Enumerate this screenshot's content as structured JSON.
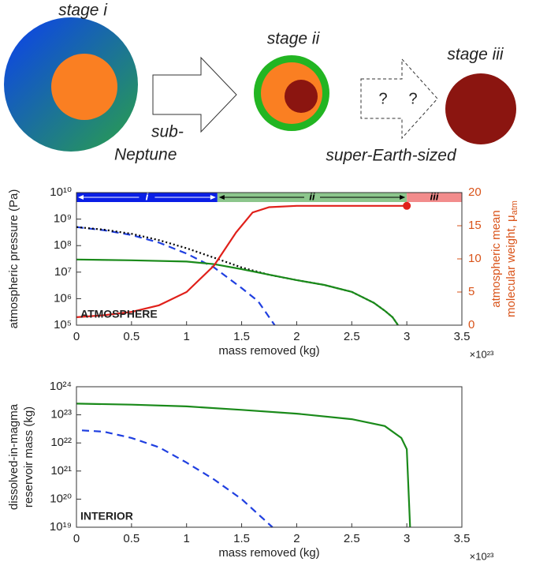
{
  "diagram": {
    "stage_1": "stage i",
    "stage_2": "stage ii",
    "stage_3": "stage iii",
    "caption_1": [
      "sub-",
      "Neptune"
    ],
    "caption_3": "super-Earth-sized",
    "question_marks": [
      "?",
      "?"
    ]
  },
  "chart_data": [
    {
      "type": "line",
      "xlabel": "mass removed (kg)",
      "ylabel": "atmospheric pressure (Pa)",
      "y2label": [
        "atmospheric mean",
        "molecular weight, μ"
      ],
      "y2label_sub": "atm",
      "x_multiplier": "×10²³",
      "annotation": "ATMOSPHERE",
      "log_y": true,
      "xlim": [
        0,
        3.5
      ],
      "xticks": [
        0,
        0.5,
        1,
        1.5,
        2,
        2.5,
        3,
        3.5
      ],
      "ylim": [
        100000,
        10000000000
      ],
      "yticks": [
        {
          "value": 100000,
          "label": "10⁵"
        },
        {
          "value": 1000000,
          "label": "10⁶"
        },
        {
          "value": 10000000,
          "label": "10⁷"
        },
        {
          "value": 100000000,
          "label": "10⁸"
        },
        {
          "value": 1000000000,
          "label": "10⁹"
        },
        {
          "value": 10000000000,
          "label": "10¹⁰"
        }
      ],
      "y2lim": [
        0,
        20
      ],
      "y2ticks": [
        0,
        5,
        10,
        15,
        20
      ],
      "y2color": "#d95319",
      "stages": [
        {
          "label": "i",
          "range": [
            0,
            1.28
          ],
          "color": "#0a1ee6"
        },
        {
          "label": "ii",
          "range": [
            1.28,
            3.0
          ],
          "color": "#8cc68c"
        },
        {
          "label": "iii",
          "range": [
            3.0,
            3.5
          ],
          "color": "#f28c8c"
        }
      ],
      "series": [
        {
          "color": "#1f3fe0",
          "dash": "dashed",
          "x": [
            0,
            0.25,
            0.5,
            0.75,
            1.0,
            1.25,
            1.5,
            1.65,
            1.8
          ],
          "values": [
            500000000,
            380000000,
            250000000,
            130000000,
            50000000,
            15000000,
            2500000,
            800000,
            100000
          ]
        },
        {
          "color": "#000000",
          "dash": "dotted",
          "x": [
            0,
            0.25,
            0.5,
            0.75,
            1.0,
            1.25,
            1.5,
            1.75,
            2.0,
            2.25,
            2.5,
            2.7,
            2.8,
            2.87,
            2.92
          ],
          "values": [
            500000000,
            400000000,
            280000000,
            160000000,
            80000000,
            35000000,
            15000000,
            8000000,
            5000000,
            3300000,
            1800000,
            700000,
            350000,
            200000,
            100000
          ]
        },
        {
          "color": "#1a8a1a",
          "dash": "solid",
          "x": [
            0,
            0.5,
            1.0,
            1.25,
            1.5,
            1.75,
            2.0,
            2.25,
            2.5,
            2.7,
            2.8,
            2.87,
            2.92
          ],
          "values": [
            30000000,
            28000000,
            25000000,
            20000000,
            13000000,
            8000000,
            5000000,
            3300000,
            1800000,
            700000,
            350000,
            200000,
            100000
          ]
        },
        {
          "color": "#e0201a",
          "dash": "solid",
          "axis": "y2",
          "end_marker": true,
          "x": [
            0,
            0.25,
            0.5,
            0.75,
            1.0,
            1.25,
            1.45,
            1.6,
            1.75,
            2.0,
            2.5,
            3.0
          ],
          "values": [
            1.2,
            1.5,
            2,
            3,
            5,
            9,
            14,
            17,
            17.8,
            18,
            18,
            18
          ]
        }
      ]
    },
    {
      "type": "line",
      "xlabel": "mass removed (kg)",
      "ylabel": [
        "dissolved-in-magma",
        "reservoir mass (kg)"
      ],
      "x_multiplier": "×10²³",
      "annotation": "INTERIOR",
      "log_y": true,
      "xlim": [
        0,
        3.5
      ],
      "xticks": [
        0,
        0.5,
        1,
        1.5,
        2,
        2.5,
        3,
        3.5
      ],
      "ylim": [
        1e+19,
        1e+24
      ],
      "yticks": [
        {
          "value": 1e+19,
          "label": "10¹⁹"
        },
        {
          "value": 1e+20,
          "label": "10²⁰"
        },
        {
          "value": 1e+21,
          "label": "10²¹"
        },
        {
          "value": 1e+22,
          "label": "10²²"
        },
        {
          "value": 1e+23,
          "label": "10²³"
        },
        {
          "value": 1e+24,
          "label": "10²⁴"
        }
      ],
      "series": [
        {
          "color": "#1a8a1a",
          "dash": "solid",
          "x": [
            0,
            0.5,
            1.0,
            1.5,
            2.0,
            2.5,
            2.8,
            2.95,
            3.0,
            3.03
          ],
          "values": [
            2.5e+23,
            2.3e+23,
            2e+23,
            1.5e+23,
            1.1e+23,
            7e+22,
            4e+22,
            1.5e+22,
            6e+21,
            1e+19
          ]
        },
        {
          "color": "#1f3fe0",
          "dash": "dashed",
          "x": [
            0.05,
            0.25,
            0.5,
            0.75,
            1.0,
            1.25,
            1.5,
            1.78
          ],
          "values": [
            2.8e+22,
            2.5e+22,
            1.5e+22,
            7e+21,
            2e+21,
            5e+20,
            1e+20,
            1e+19
          ]
        }
      ]
    }
  ]
}
